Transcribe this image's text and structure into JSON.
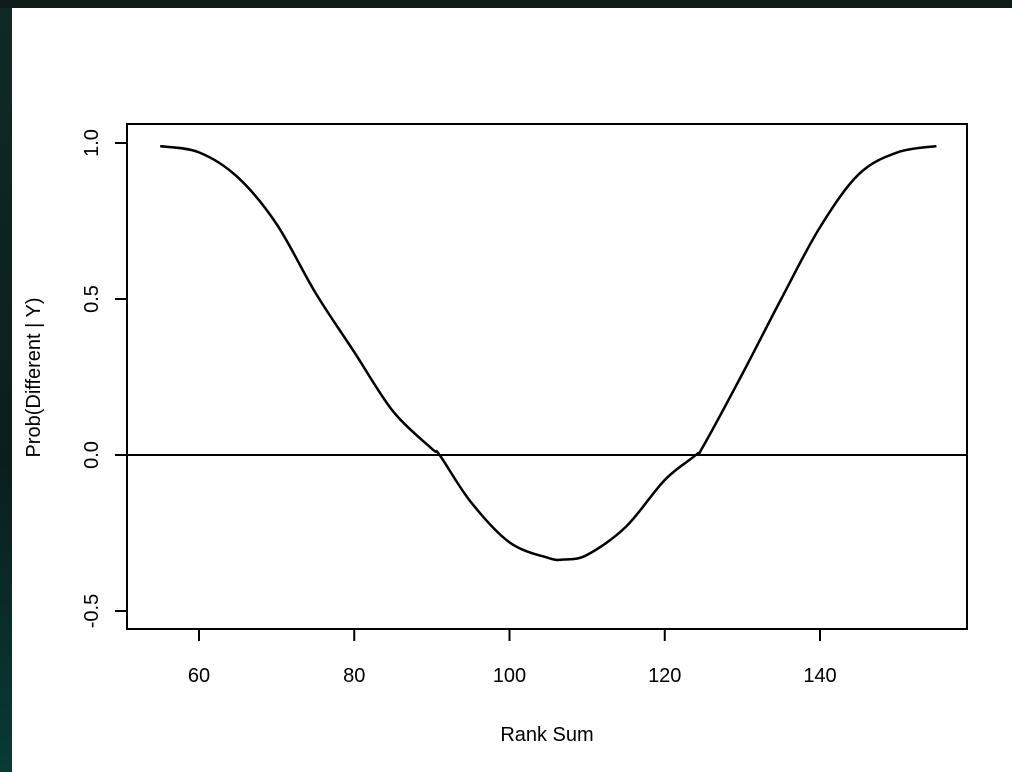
{
  "chart_data": {
    "type": "line",
    "title": "",
    "xlabel": "Rank Sum",
    "ylabel": "Prob(Different | Y)",
    "xlim": [
      50,
      159
    ],
    "ylim": [
      -0.55,
      1.05
    ],
    "xticks": [
      60,
      80,
      100,
      120,
      140
    ],
    "yticks": [
      -0.5,
      0.0,
      0.5,
      1.0
    ],
    "xtick_labels": [
      "60",
      "80",
      "100",
      "120",
      "140"
    ],
    "ytick_labels": [
      "-0.5",
      "0.0",
      "0.5",
      "1.0"
    ],
    "grid": false,
    "legend": "none",
    "reference_line": {
      "y": 0.0
    },
    "series": [
      {
        "x": [
          55,
          60,
          65,
          70,
          75,
          80,
          85,
          90,
          91,
          95,
          100,
          105,
          107,
          110,
          115,
          120,
          124,
          125,
          130,
          135,
          140,
          145,
          150,
          155
        ],
        "values": [
          0.99,
          0.97,
          0.89,
          0.74,
          0.52,
          0.33,
          0.14,
          0.02,
          0.0,
          -0.15,
          -0.28,
          -0.33,
          -0.335,
          -0.32,
          -0.23,
          -0.08,
          0.0,
          0.03,
          0.26,
          0.5,
          0.73,
          0.9,
          0.97,
          0.99
        ]
      }
    ]
  }
}
